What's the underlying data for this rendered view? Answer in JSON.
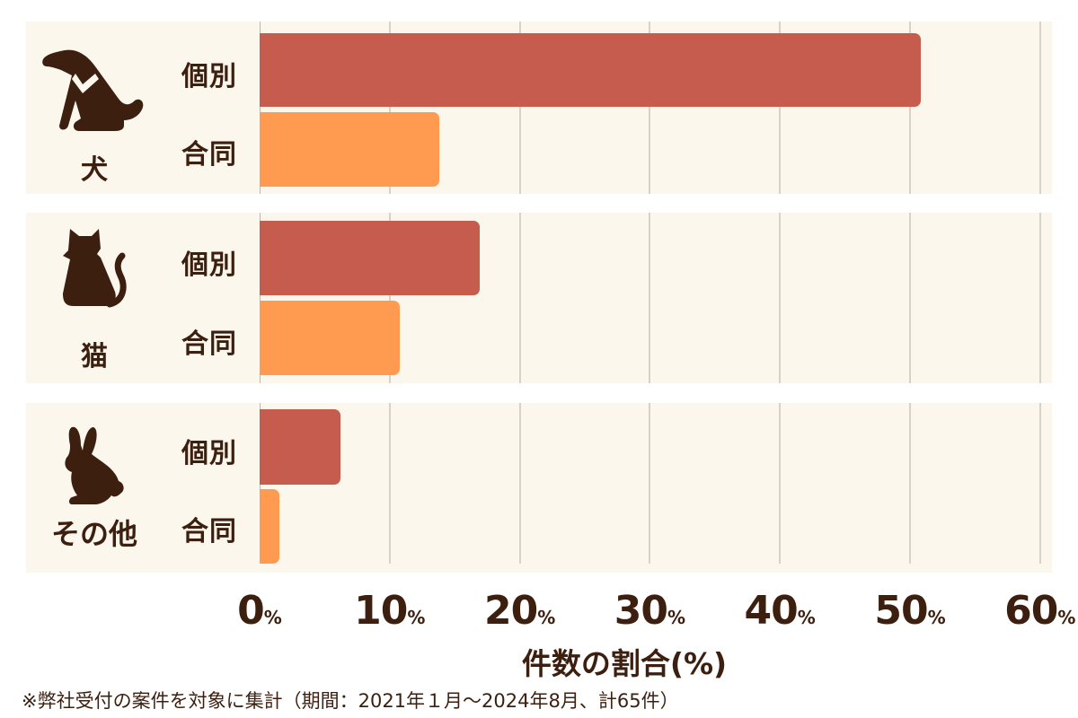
{
  "chart_data": {
    "type": "bar",
    "orientation": "horizontal",
    "title": "",
    "xlabel": "件数の割合(%)",
    "ylabel": "",
    "xlim": [
      0,
      60
    ],
    "xticks": [
      "0",
      "10",
      "20",
      "30",
      "40",
      "50",
      "60"
    ],
    "tick_suffix": "%",
    "grid": true,
    "legend": "none",
    "categories": [
      "犬",
      "猫",
      "その他"
    ],
    "series": [
      {
        "name": "個別",
        "color": "#c65c4d",
        "values": [
          50.8,
          16.9,
          6.2
        ]
      },
      {
        "name": "合同",
        "color": "#ff9b50",
        "values": [
          13.8,
          10.8,
          1.5
        ]
      }
    ],
    "footnote": "※弊社受付の案件を対象に集計（期間：2021年１月〜2024年8月、計65件）"
  },
  "groups": [
    {
      "label": "犬",
      "icon": "dog-icon",
      "individual_label": "個別",
      "joint_label": "合同"
    },
    {
      "label": "猫",
      "icon": "cat-icon",
      "individual_label": "個別",
      "joint_label": "合同"
    },
    {
      "label": "その他",
      "icon": "rabbit-icon",
      "individual_label": "個別",
      "joint_label": "合同"
    }
  ],
  "axis": {
    "ticks": [
      "0",
      "10",
      "20",
      "30",
      "40",
      "50",
      "60"
    ],
    "pct": "%",
    "title": "件数の割合(%)"
  },
  "footnote": "※弊社受付の案件を対象に集計（期間：2021年１月〜2024年8月、計65件）",
  "colors": {
    "individual": "#c65c4d",
    "joint": "#ff9b50",
    "panel_bg": "#fcf7ec",
    "text": "#3d1f10",
    "grid": "#d8d2c6"
  }
}
